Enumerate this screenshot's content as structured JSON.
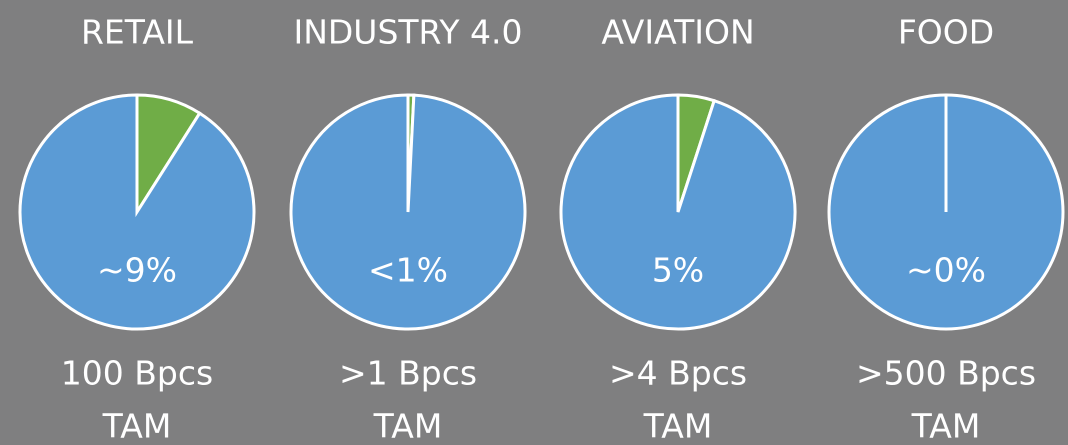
{
  "chart_data": [
    {
      "type": "pie",
      "title": "RETAIL",
      "values": [
        9,
        91
      ],
      "colors": [
        "#70ad47",
        "#5b9bd5"
      ],
      "value_label": "~9%",
      "annotations": [
        "100 Bpcs",
        "TAM"
      ]
    },
    {
      "type": "pie",
      "title": "INDUSTRY 4.0",
      "values": [
        0.8,
        99.2
      ],
      "colors": [
        "#70ad47",
        "#5b9bd5"
      ],
      "value_label": "<1%",
      "annotations": [
        ">1 Bpcs",
        "TAM"
      ]
    },
    {
      "type": "pie",
      "title": "AVIATION",
      "values": [
        5,
        95
      ],
      "colors": [
        "#70ad47",
        "#5b9bd5"
      ],
      "value_label": "5%",
      "annotations": [
        ">4 Bpcs",
        "TAM"
      ]
    },
    {
      "type": "pie",
      "title": "FOOD",
      "values": [
        0,
        100
      ],
      "colors": [
        "#70ad47",
        "#5b9bd5"
      ],
      "value_label": "~0%",
      "annotations": [
        ">500 Bpcs",
        "TAM"
      ]
    }
  ]
}
